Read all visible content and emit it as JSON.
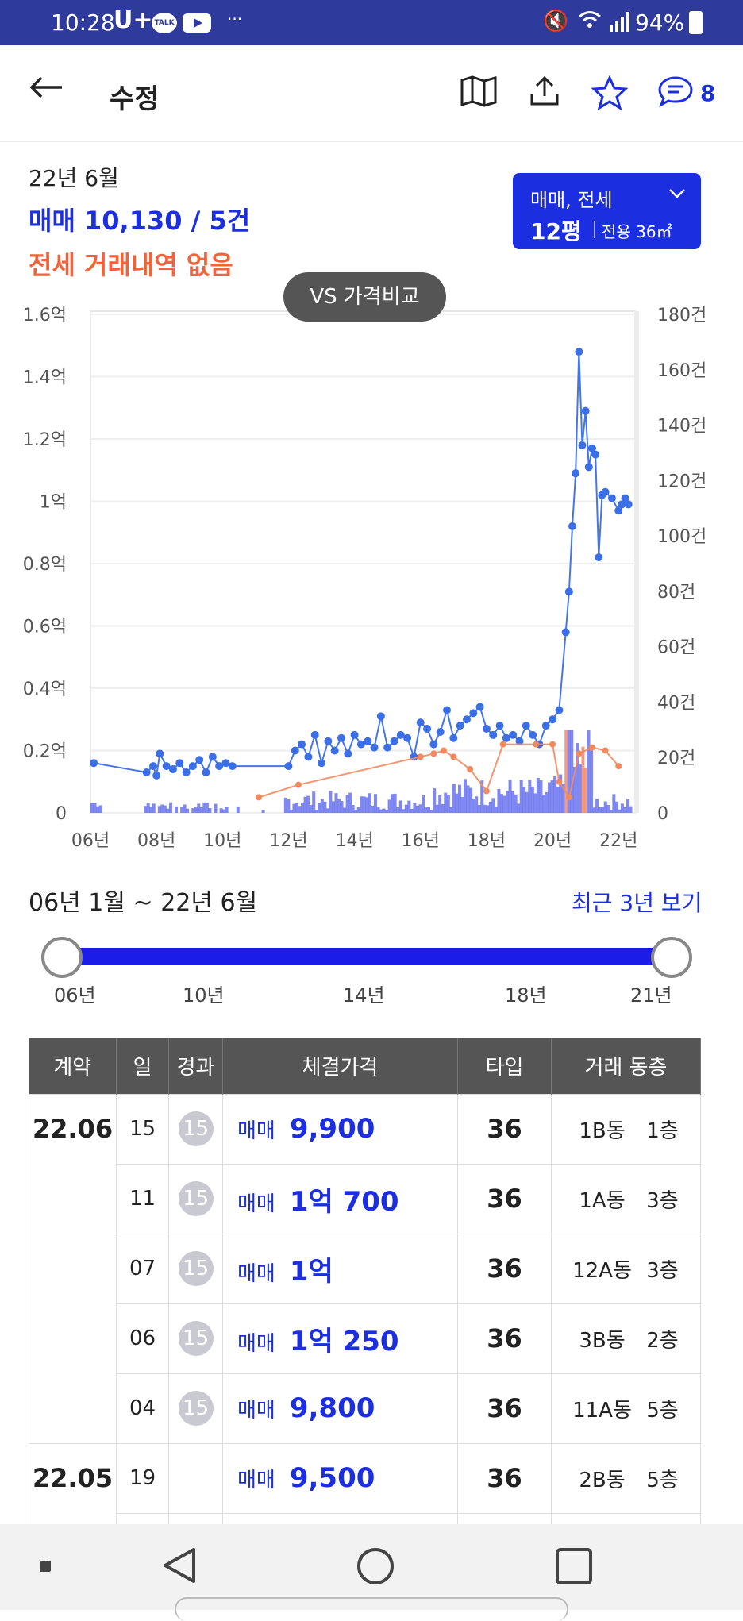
{
  "status": {
    "time": "10:28",
    "carrier": "U+",
    "talk_icon": "TALK",
    "dots": "···",
    "battery": "94%"
  },
  "appbar": {
    "title": "수정",
    "comment_count": "8"
  },
  "summary": {
    "month": "22년 6월",
    "sale_text": "매매 10,130 / 5건",
    "lease_text": "전세 거래내역 없음"
  },
  "type_selector": {
    "label": "매매, 전세",
    "pyeong": "12평",
    "area": "전용 36㎡"
  },
  "vs_button": "VS 가격비교",
  "chart_data": {
    "type": "line",
    "y_left_ticks": [
      "1.6억",
      "1.4억",
      "1.2억",
      "1억",
      "0.8억",
      "0.6억",
      "0.4억",
      "0.2억",
      "0"
    ],
    "y_right_ticks": [
      "180건",
      "160건",
      "140건",
      "120건",
      "100건",
      "80건",
      "60건",
      "40건",
      "20건",
      "0"
    ],
    "x_ticks": [
      "06년",
      "08년",
      "10년",
      "12년",
      "14년",
      "16년",
      "18년",
      "20년",
      "22년"
    ],
    "ylim_left": [
      0,
      1.6
    ],
    "ylim_right": [
      0,
      180
    ],
    "xlim": [
      2006,
      2022.5
    ],
    "series": [
      {
        "color": "#3b6fe8",
        "x": [
          2006.1,
          2007.7,
          2007.9,
          2008.0,
          2008.1,
          2008.3,
          2008.5,
          2008.7,
          2008.9,
          2009.1,
          2009.3,
          2009.5,
          2009.7,
          2009.9,
          2010.1,
          2010.3,
          2012.0,
          2012.2,
          2012.4,
          2012.6,
          2012.8,
          2013.0,
          2013.2,
          2013.4,
          2013.6,
          2013.8,
          2014.0,
          2014.2,
          2014.4,
          2014.6,
          2014.8,
          2015.0,
          2015.2,
          2015.4,
          2015.6,
          2015.8,
          2016.0,
          2016.2,
          2016.4,
          2016.6,
          2016.8,
          2017.0,
          2017.2,
          2017.4,
          2017.6,
          2017.8,
          2018.0,
          2018.2,
          2018.4,
          2018.6,
          2018.8,
          2019.0,
          2019.2,
          2019.4,
          2019.6,
          2019.8,
          2020.0,
          2020.2,
          2020.4,
          2020.5,
          2020.6,
          2020.7,
          2020.8,
          2020.9,
          2021.0,
          2021.1,
          2021.2,
          2021.3,
          2021.4,
          2021.5,
          2021.6,
          2021.8,
          2022.0,
          2022.1,
          2022.2,
          2022.3
        ],
        "y": [
          0.16,
          0.13,
          0.15,
          0.12,
          0.19,
          0.15,
          0.14,
          0.16,
          0.13,
          0.15,
          0.17,
          0.13,
          0.18,
          0.15,
          0.16,
          0.15,
          0.15,
          0.2,
          0.22,
          0.18,
          0.25,
          0.16,
          0.23,
          0.2,
          0.24,
          0.19,
          0.25,
          0.22,
          0.23,
          0.21,
          0.31,
          0.21,
          0.23,
          0.25,
          0.24,
          0.18,
          0.29,
          0.27,
          0.22,
          0.26,
          0.33,
          0.24,
          0.28,
          0.3,
          0.32,
          0.34,
          0.27,
          0.25,
          0.28,
          0.24,
          0.25,
          0.23,
          0.28,
          0.25,
          0.22,
          0.28,
          0.3,
          0.33,
          0.58,
          0.71,
          0.92,
          1.09,
          1.48,
          1.18,
          1.29,
          1.11,
          1.17,
          1.15,
          0.82,
          1.02,
          1.03,
          1.01,
          0.97,
          0.99,
          1.01,
          0.99
        ]
      },
      {
        "color": "#f4895e",
        "x": [
          2011.1,
          2012.3,
          2016.0,
          2016.4,
          2016.7,
          2017.0,
          2017.5,
          2018.0,
          2018.5,
          2019.5,
          2020.0,
          2020.2,
          2020.5,
          2020.8,
          2021.2,
          2021.6,
          2022.0
        ],
        "y": [
          0.05,
          0.09,
          0.18,
          0.19,
          0.2,
          0.18,
          0.14,
          0.07,
          0.22,
          0.22,
          0.22,
          0.1,
          0.05,
          0.19,
          0.21,
          0.2,
          0.15
        ]
      }
    ],
    "volume_bars_color": "#6a73ef",
    "volume_bars_recent_color": "#f08a6d"
  },
  "range": {
    "label": "06년 1월 ~ 22년 6월",
    "recent_link": "최근 3년 보기",
    "ticks": [
      "06년",
      "10년",
      "14년",
      "18년",
      "21년"
    ]
  },
  "table": {
    "headers": [
      "계약",
      "일",
      "경과",
      "체결가격",
      "타입",
      "거래 동층"
    ],
    "groups": [
      {
        "contract": "22.06",
        "rows": [
          {
            "day": "15",
            "badge": "15",
            "ptype": "매매",
            "price": "9,900",
            "type": "36",
            "dong": "1B동",
            "floor": "1층"
          },
          {
            "day": "11",
            "badge": "15",
            "ptype": "매매",
            "price": "1억 700",
            "type": "36",
            "dong": "1A동",
            "floor": "3층"
          },
          {
            "day": "07",
            "badge": "15",
            "ptype": "매매",
            "price": "1억",
            "type": "36",
            "dong": "12A동",
            "floor": "3층"
          },
          {
            "day": "06",
            "badge": "15",
            "ptype": "매매",
            "price": "1억 250",
            "type": "36",
            "dong": "3B동",
            "floor": "2층"
          },
          {
            "day": "04",
            "badge": "15",
            "ptype": "매매",
            "price": "9,800",
            "type": "36",
            "dong": "11A동",
            "floor": "5층"
          }
        ]
      },
      {
        "contract": "22.05",
        "rows": [
          {
            "day": "19",
            "badge": "",
            "ptype": "매매",
            "price": "9,500",
            "type": "36",
            "dong": "2B동",
            "floor": "5층"
          }
        ]
      }
    ]
  }
}
